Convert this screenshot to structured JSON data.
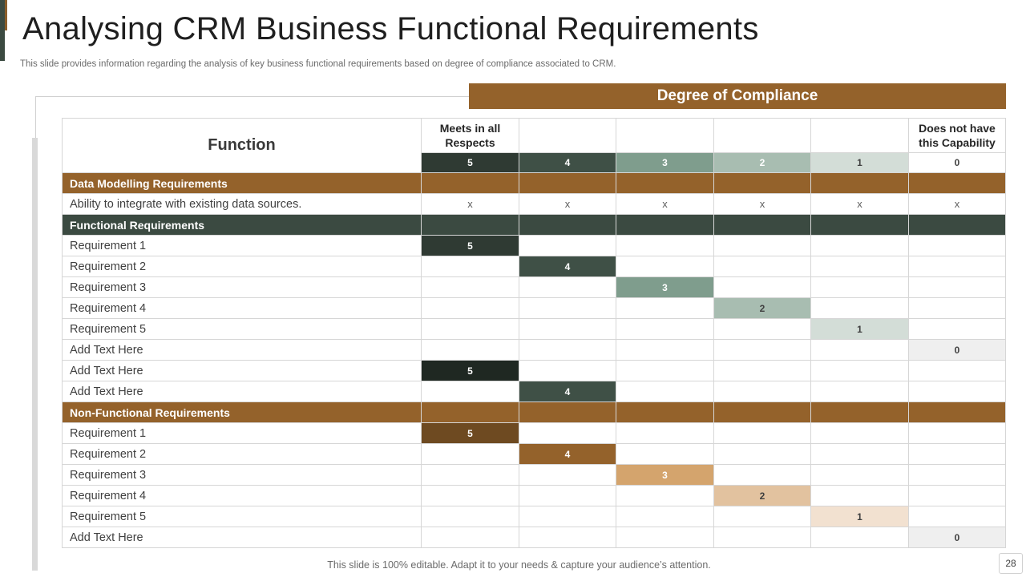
{
  "slide": {
    "title": "Analysing CRM Business Functional Requirements",
    "subtitle": "This slide provides information regarding the analysis of key business functional requirements based on degree of compliance associated to CRM.",
    "footer": "This slide is 100% editable. Adapt it to your needs & capture your audience’s attention.",
    "page_number": "28"
  },
  "table": {
    "banner": "Degree of Compliance",
    "function_header": "Function",
    "col_headers": [
      "Meets in all Respects",
      "",
      "",
      "",
      "",
      "Does not have this Capability"
    ],
    "levels": [
      "5",
      "4",
      "3",
      "2",
      "1",
      "0"
    ],
    "level_colors": [
      "#2f3a33",
      "#3f5046",
      "#7f9d8d",
      "#a8bdb1",
      "#d3ddd7",
      "#ffffff"
    ],
    "rows": [
      {
        "type": "section",
        "label": "Data Modelling Requirements",
        "theme": "brown"
      },
      {
        "type": "x",
        "label": "Ability to integrate with existing data sources.",
        "mark": "x"
      },
      {
        "type": "section",
        "label": "Functional Requirements",
        "theme": "green"
      },
      {
        "type": "item",
        "label": "Requirement 1",
        "col": 0,
        "value": "5",
        "color": "#2f3a33"
      },
      {
        "type": "item",
        "label": "Requirement 2",
        "col": 1,
        "value": "4",
        "color": "#3f5046"
      },
      {
        "type": "item",
        "label": "Requirement 3",
        "col": 2,
        "value": "3",
        "color": "#7f9d8d"
      },
      {
        "type": "item",
        "label": "Requirement 4",
        "col": 3,
        "value": "2",
        "color": "#a8bdb1",
        "dark": true
      },
      {
        "type": "item",
        "label": "Requirement 5",
        "col": 4,
        "value": "1",
        "color": "#d3ddd7",
        "dark": true
      },
      {
        "type": "item",
        "label": "Add Text Here",
        "col": 5,
        "value": "0",
        "color": "#efefef",
        "dark": true
      },
      {
        "type": "item",
        "label": "Add Text Here",
        "col": 0,
        "value": "5",
        "color": "#1f2822"
      },
      {
        "type": "item",
        "label": "Add Text Here",
        "col": 1,
        "value": "4",
        "color": "#3f5046"
      },
      {
        "type": "section",
        "label": "Non-Functional Requirements",
        "theme": "brown"
      },
      {
        "type": "item",
        "label": "Requirement 1",
        "col": 0,
        "value": "5",
        "color": "#6e4a21"
      },
      {
        "type": "item",
        "label": "Requirement 2",
        "col": 1,
        "value": "4",
        "color": "#94622b"
      },
      {
        "type": "item",
        "label": "Requirement 3",
        "col": 2,
        "value": "3",
        "color": "#d4a46d"
      },
      {
        "type": "item",
        "label": "Requirement 4",
        "col": 3,
        "value": "2",
        "color": "#e2c29f",
        "dark": true
      },
      {
        "type": "item",
        "label": "Requirement 5",
        "col": 4,
        "value": "1",
        "color": "#f2e1d0",
        "dark": true
      },
      {
        "type": "item",
        "label": "Add Text Here",
        "col": 5,
        "value": "0",
        "color": "#efefef",
        "dark": true
      }
    ]
  }
}
